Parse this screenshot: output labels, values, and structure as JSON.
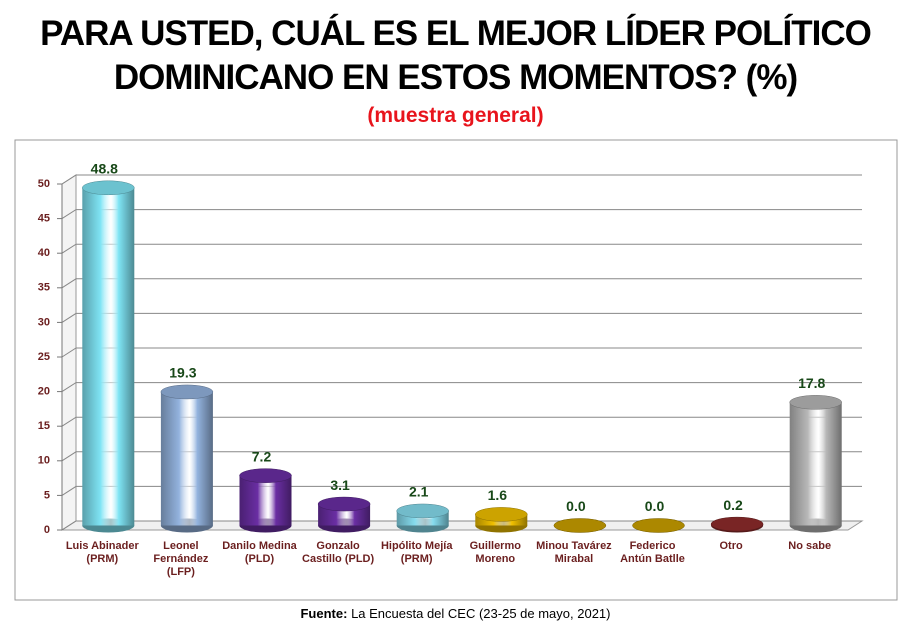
{
  "chart_data": {
    "type": "bar",
    "title": "PARA USTED, CUÁL ES EL MEJOR LÍDER POLÍTICO DOMINICANO EN ESTOS MOMENTOS? (%)",
    "subtitle": "(muestra general)",
    "source_label": "Fuente:",
    "source": "La Encuesta del CEC (23-25 de mayo, 2021)",
    "categories": [
      "Luis Abinader (PRM)",
      "Leonel Fernández (LFP)",
      "Danilo Medina (PLD)",
      "Gonzalo Castillo (PLD)",
      "Hipólito Mejía (PRM)",
      "Guillermo Moreno",
      "Minou Tavárez Mirabal",
      "Federico Antún Batlle",
      "Otro",
      "No sabe"
    ],
    "values": [
      48.8,
      19.3,
      7.2,
      3.1,
      2.1,
      1.6,
      0,
      0,
      0.2,
      17.8
    ],
    "value_labels": [
      "48.8",
      "19.3",
      "7.2",
      "3.1",
      "2.1",
      "1.6",
      "0.0",
      "0.0",
      "0.2",
      "17.8"
    ],
    "colors": [
      "#7fe4f4",
      "#93b3de",
      "#6a2ea3",
      "#6a2ea3",
      "#86dcee",
      "#f0c000",
      "#caa000",
      "#caa000",
      "#8e2b2b",
      "#b8b8b8"
    ],
    "ylim": [
      0,
      50
    ],
    "yticks": [
      0,
      5,
      10,
      15,
      20,
      25,
      30,
      35,
      40,
      45,
      50
    ],
    "grid": true
  }
}
